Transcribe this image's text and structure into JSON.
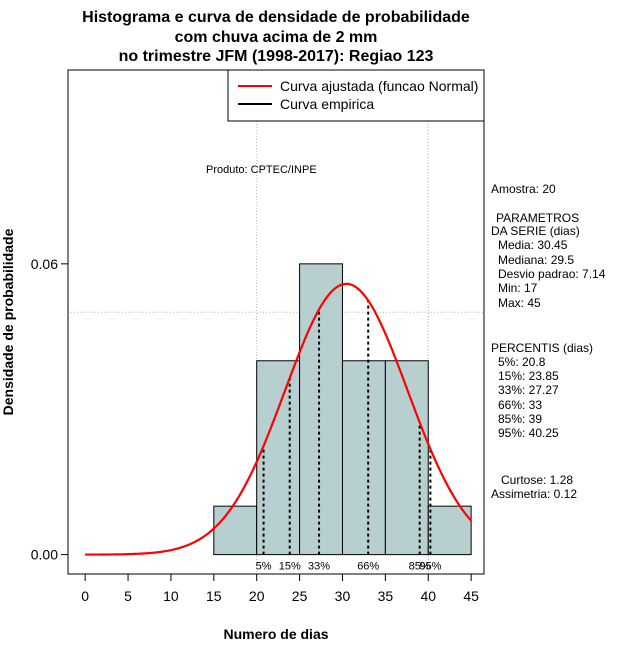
{
  "chart_data": {
    "type": "bar",
    "title_lines": [
      "Histograma e curva de densidade de probabilidade",
      "com chuva acima de 2 mm",
      "no trimestre JFM (1998-2017): Regiao 123"
    ],
    "xlabel": "Numero de dias",
    "ylabel": "Densidade de probabilidade",
    "xlim": [
      -2,
      46.5
    ],
    "ylim": [
      -0.004,
      0.1
    ],
    "xticks": [
      0,
      5,
      10,
      15,
      20,
      25,
      30,
      35,
      40,
      45
    ],
    "yticks": [
      0.0,
      0.06
    ],
    "ytick_labels": [
      "0.00",
      "0.06"
    ],
    "grid_x": [
      20,
      40
    ],
    "grid_y": [
      0.05,
      0.1
    ],
    "bar_color": "#b8cfcf",
    "curve_color": "#ff0000",
    "bins": [
      {
        "start": 15,
        "end": 20,
        "value": 0.01
      },
      {
        "start": 20,
        "end": 25,
        "value": 0.04
      },
      {
        "start": 25,
        "end": 30,
        "value": 0.06
      },
      {
        "start": 30,
        "end": 35,
        "value": 0.04
      },
      {
        "start": 35,
        "end": 40,
        "value": 0.04
      },
      {
        "start": 40,
        "end": 45,
        "value": 0.01
      }
    ],
    "normal_fit": {
      "mean": 30.45,
      "sd": 7.14,
      "x_range": [
        0,
        45
      ]
    },
    "percentile_lines": [
      {
        "label": "5%",
        "x": 20.8
      },
      {
        "label": "15%",
        "x": 23.85
      },
      {
        "label": "33%",
        "x": 27.27
      },
      {
        "label": "66%",
        "x": 33
      },
      {
        "label": "85%",
        "x": 39
      },
      {
        "label": "95%",
        "x": 40.25
      }
    ],
    "legend": [
      {
        "label": "Curva ajustada (funcao Normal)",
        "color": "#ff0000"
      },
      {
        "label": "Curva empirica",
        "color": "#000000"
      }
    ],
    "legend_position": "top-right",
    "annotation": "Produto: CPTEC/INPE"
  },
  "stats_panel": {
    "amostra": "Amostra: 20",
    "params_title": "PARAMETROS",
    "params_subtitle": "DA SERIE (dias)",
    "params": [
      "Media: 30.45",
      "Mediana: 29.5",
      "Desvio padrao: 7.14",
      "Min: 17",
      "Max: 45"
    ],
    "percentis_title": "PERCENTIS (dias)",
    "percentis": [
      "5%: 20.8",
      "15%: 23.85",
      "33%: 27.27",
      "66%: 33",
      "85%: 39",
      "95%: 40.25"
    ],
    "curtose": "Curtose: 1.28",
    "assimetria": "Assimetria: 0.12"
  }
}
